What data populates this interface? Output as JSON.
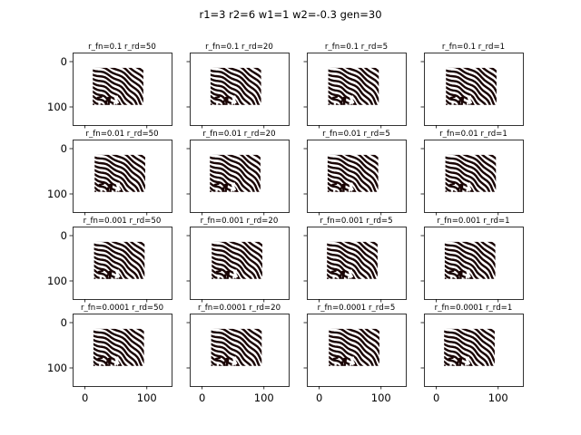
{
  "chart_data": {
    "type": "heatmap",
    "title": "r1=3 r2=6 w1=1 w2=-0.3 gen=30",
    "grid": "4x4 subplots, shared axes",
    "colormap": "black / white binary (dark red-black on white)",
    "colors": {
      "dark": "#1a0505",
      "light": "#ffffff",
      "axis": "#000000"
    },
    "xlim": [
      -20,
      140
    ],
    "ylim": [
      140,
      -20
    ],
    "image_extent": [
      0,
      120,
      0,
      120
    ],
    "xticks": [
      0,
      100
    ],
    "xtick_labels": [
      "0",
      "100"
    ],
    "yticks": [
      0,
      100
    ],
    "ytick_labels": [
      "0",
      "100"
    ],
    "pattern": "labyrinth stripes, mostly diagonal arcs in upper-right, mazelike in lower-left",
    "rows": [
      {
        "r_fn": "0.1",
        "panels": [
          "r_fn=0.1 r_rd=50",
          "r_fn=0.1 r_rd=20",
          "r_fn=0.1 r_rd=5",
          "r_fn=0.1 r_rd=1"
        ]
      },
      {
        "r_fn": "0.01",
        "panels": [
          "r_fn=0.01 r_rd=50",
          "r_fn=0.01 r_rd=20",
          "r_fn=0.01 r_rd=5",
          "r_fn=0.01 r_rd=1"
        ]
      },
      {
        "r_fn": "0.001",
        "panels": [
          "r_fn=0.001 r_rd=50",
          "r_fn=0.001 r_rd=20",
          "r_fn=0.001 r_rd=5",
          "r_fn=0.001 r_rd=1"
        ]
      },
      {
        "r_fn": "0.0001",
        "panels": [
          "r_fn=0.0001 r_rd=50",
          "r_fn=0.0001 r_rd=20",
          "r_fn=0.0001 r_rd=5",
          "r_fn=0.0001 r_rd=1"
        ]
      }
    ]
  }
}
